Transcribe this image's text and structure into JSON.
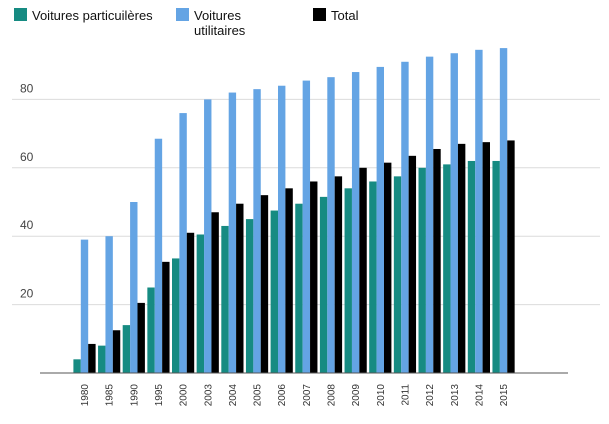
{
  "chart_data": {
    "type": "bar",
    "title": "",
    "xlabel": "",
    "ylabel": "",
    "ylim": [
      0,
      100
    ],
    "yticks": [
      20,
      40,
      60,
      80
    ],
    "grid": true,
    "legend_placement": "top-left",
    "categories": [
      "1980",
      "1985",
      "1990",
      "1995",
      "2000",
      "2003",
      "2004",
      "2005",
      "2006",
      "2007",
      "2008",
      "2009",
      "2010",
      "2011",
      "2012",
      "2013",
      "2014",
      "2015"
    ],
    "series": [
      {
        "name": "Voitures particuilères",
        "name_lines": [
          "Voitures particuilères"
        ],
        "color": "#168b82",
        "values": [
          4,
          8,
          14,
          25,
          33.5,
          40.5,
          43,
          45,
          47.5,
          49.5,
          51.5,
          54,
          56,
          57.5,
          60,
          61,
          62,
          62
        ]
      },
      {
        "name": "Voitures utilitaires",
        "name_lines": [
          "Voitures",
          "utilitaires"
        ],
        "color": "#64a4e4",
        "values": [
          39,
          40,
          50,
          68.5,
          76,
          80,
          82,
          83,
          84,
          85.5,
          86.5,
          88,
          89.5,
          91,
          92.5,
          93.5,
          94.5,
          95
        ]
      },
      {
        "name": "Total",
        "name_lines": [
          "Total"
        ],
        "color": "#000000",
        "values": [
          8.5,
          12.5,
          20.5,
          32.5,
          41,
          47,
          49.5,
          52,
          54,
          56,
          57.5,
          60,
          61.5,
          63.5,
          65.5,
          67,
          67.5,
          68
        ]
      }
    ]
  }
}
